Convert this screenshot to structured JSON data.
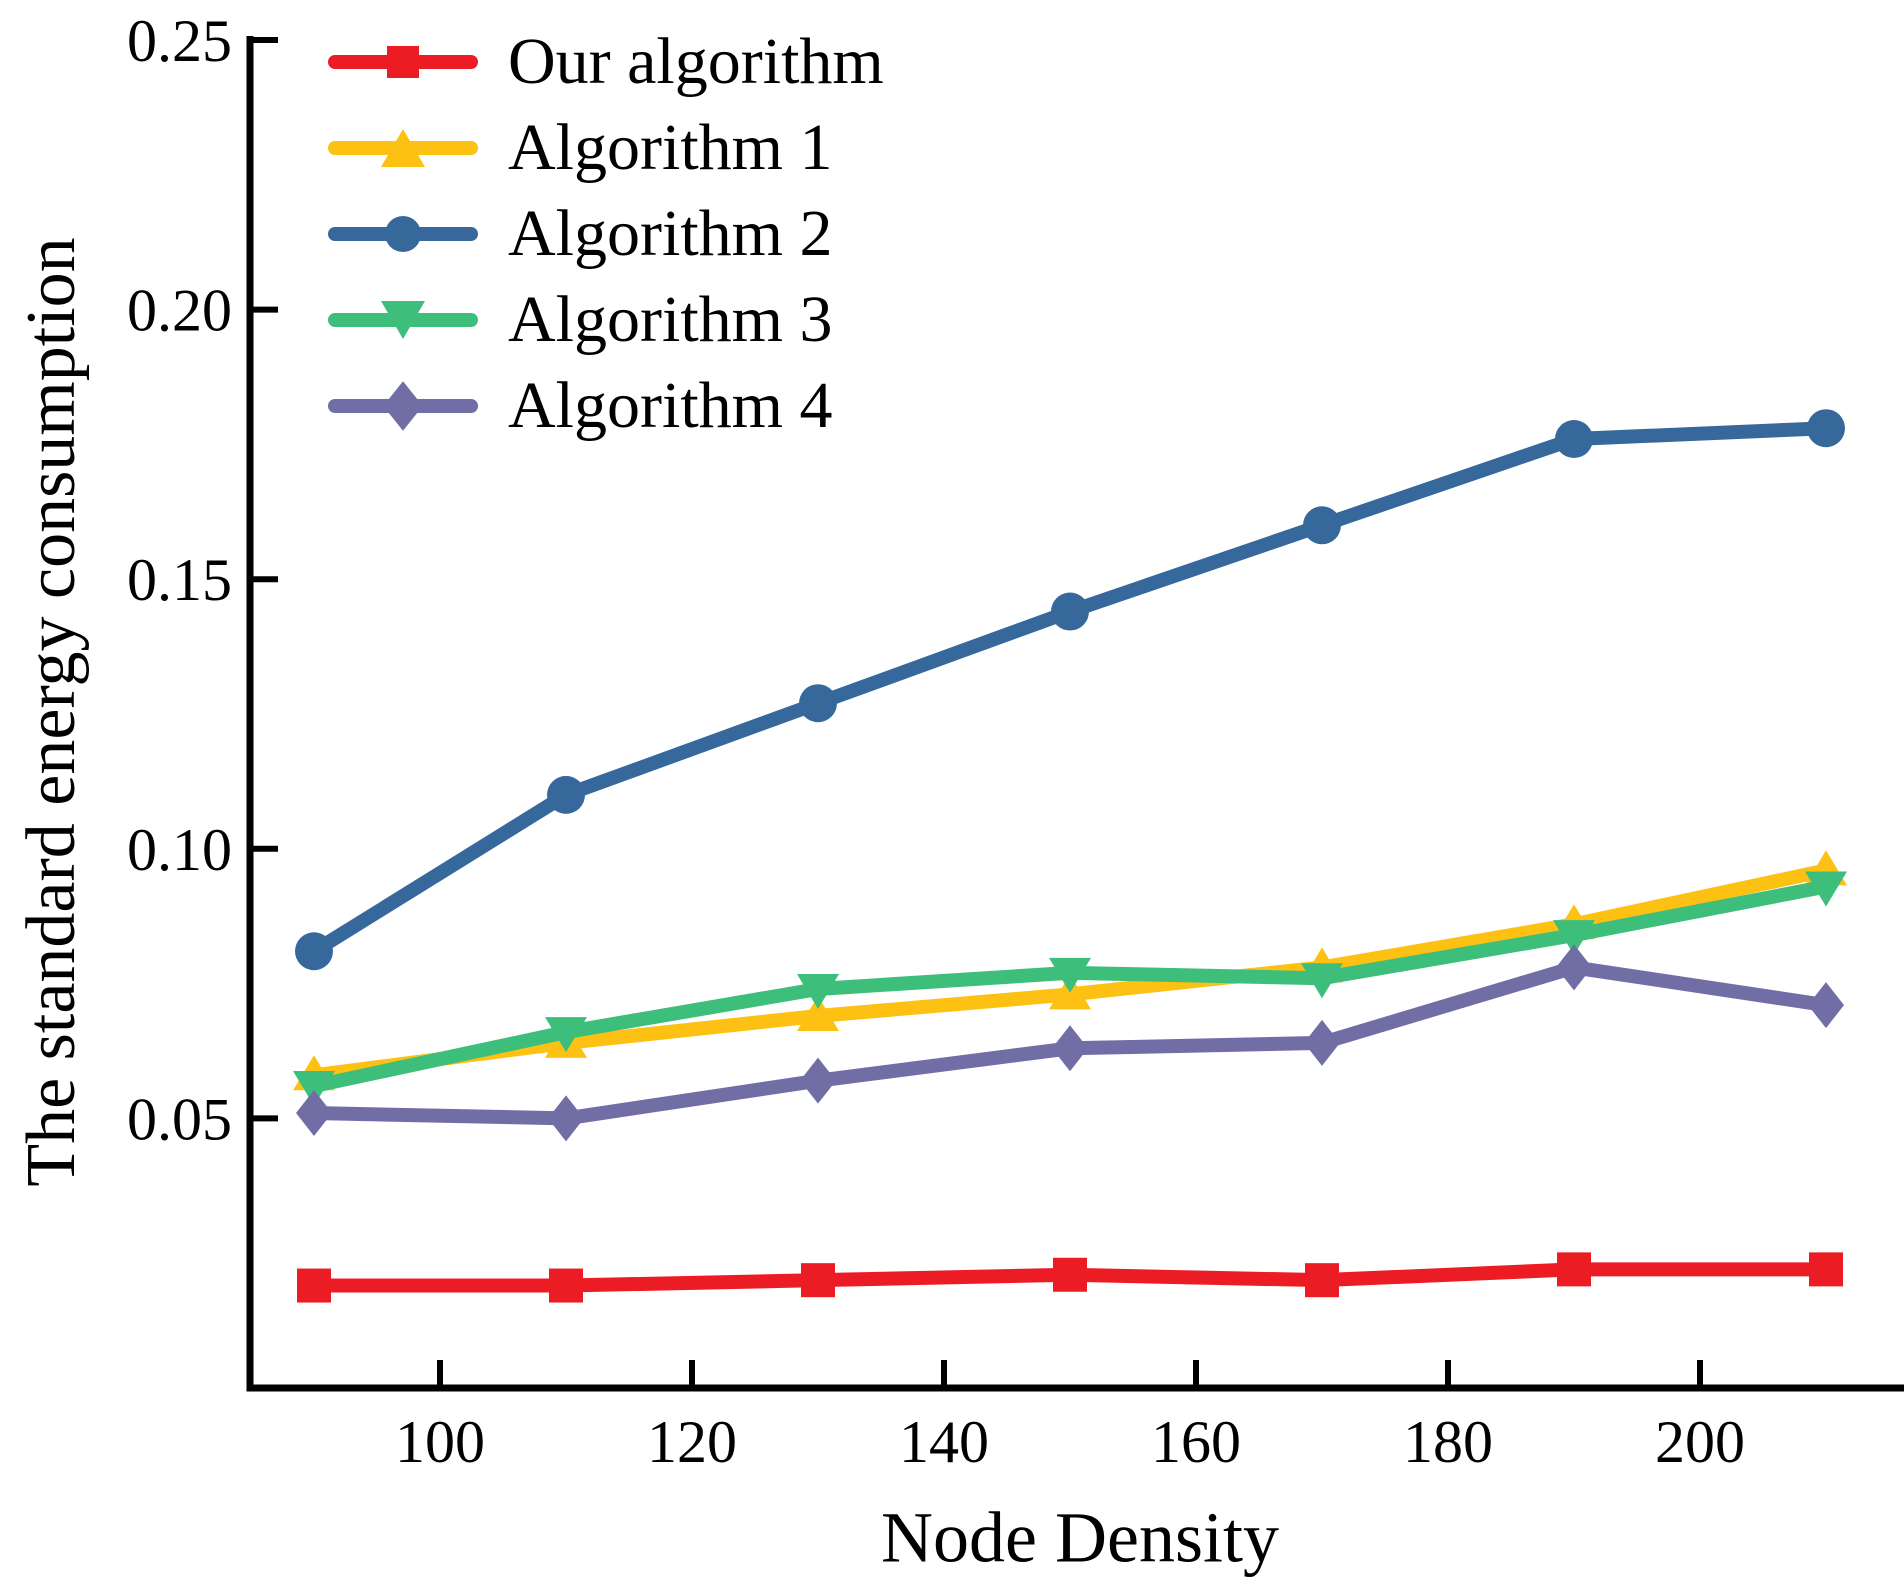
{
  "chart_data": {
    "type": "line",
    "title": "",
    "xlabel": "Node Density",
    "ylabel": "The standard energy consumption",
    "x": [
      90,
      110,
      130,
      150,
      170,
      190,
      210
    ],
    "series": [
      {
        "name": "Our algorithm",
        "marker": "square",
        "color": "#EC1C24",
        "values": [
          0.019,
          0.019,
          0.02,
          0.021,
          0.02,
          0.022,
          0.022
        ]
      },
      {
        "name": "Algorithm 1",
        "marker": "triangle-up",
        "color": "#FDC113",
        "values": [
          0.058,
          0.064,
          0.069,
          0.073,
          0.078,
          0.086,
          0.096
        ]
      },
      {
        "name": "Algorithm 2",
        "marker": "circle",
        "color": "#36689C",
        "values": [
          0.081,
          0.11,
          0.127,
          0.144,
          0.16,
          0.176,
          0.178
        ]
      },
      {
        "name": "Algorithm 3",
        "marker": "triangle-down",
        "color": "#3DBE7A",
        "values": [
          0.056,
          0.066,
          0.074,
          0.077,
          0.076,
          0.084,
          0.093
        ]
      },
      {
        "name": "Algorithm 4",
        "marker": "diamond",
        "color": "#716DA5",
        "values": [
          0.051,
          0.05,
          0.057,
          0.063,
          0.064,
          0.078,
          0.071
        ]
      }
    ],
    "xticks": [
      100,
      120,
      140,
      160,
      180,
      200
    ],
    "xtick_labels": [
      "100",
      "120",
      "140",
      "160",
      "180",
      "200"
    ],
    "yticks": [
      0.05,
      0.1,
      0.15,
      0.2,
      0.25
    ],
    "ytick_labels": [
      "0.05",
      "0.10",
      "0.15",
      "0.20",
      "0.25"
    ],
    "xlim": [
      85,
      216
    ],
    "ylim": [
      0,
      0.25
    ],
    "grid": false,
    "legend_position": "upper left",
    "axis_color": "#000000",
    "background_color": "#FFFFFF"
  }
}
